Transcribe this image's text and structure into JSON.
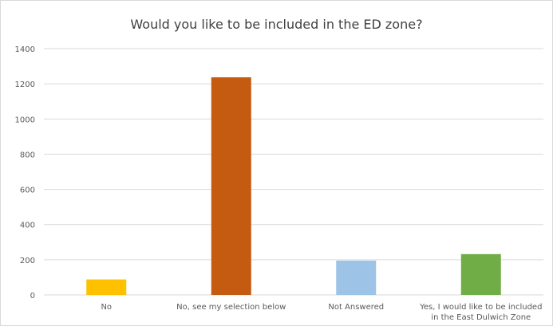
{
  "chart_data": {
    "type": "bar",
    "title": "Would you like to be included in the ED zone?",
    "categories": [
      [
        "No"
      ],
      [
        "No, see my selection below"
      ],
      [
        "Not Answered"
      ],
      [
        "Yes, I would like to be included",
        "in the East Dulwich Zone"
      ]
    ],
    "values": [
      88,
      1237,
      195,
      232
    ],
    "colors": [
      "#ffc000",
      "#c55a11",
      "#9dc3e6",
      "#70ad47"
    ],
    "ylim": [
      0,
      1400
    ],
    "yticks": [
      0,
      200,
      400,
      600,
      800,
      1000,
      1200,
      1400
    ],
    "grid": true,
    "legend": "none",
    "xlabel": "",
    "ylabel": ""
  }
}
